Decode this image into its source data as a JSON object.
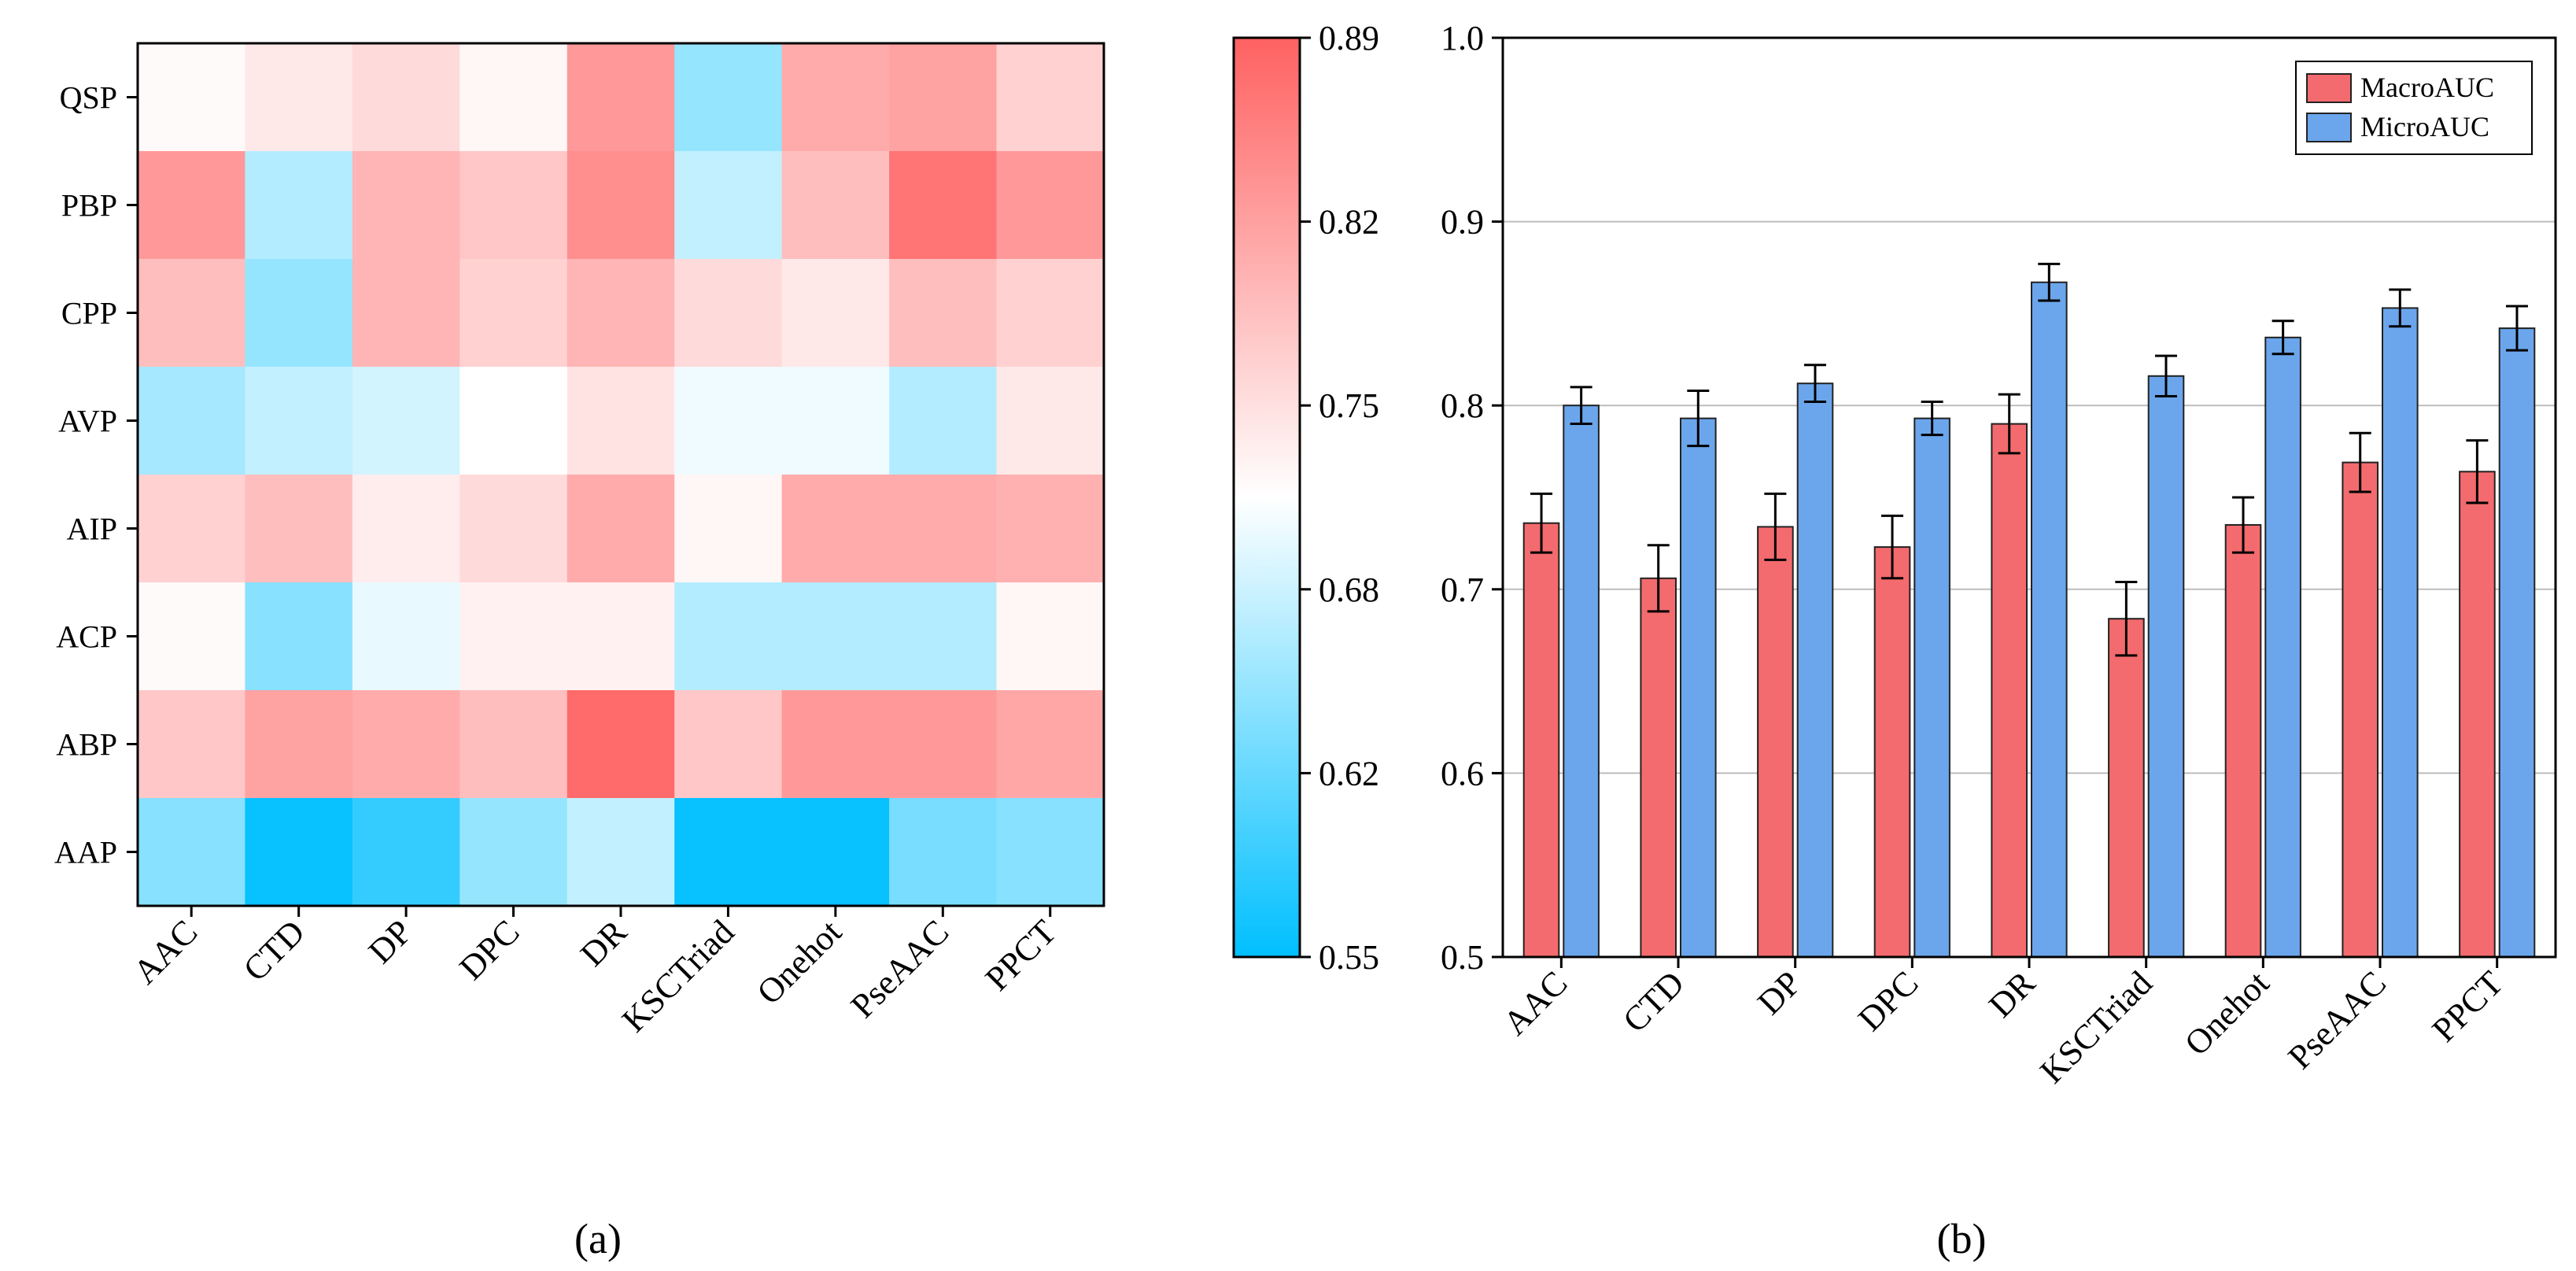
{
  "panel_labels": [
    "(a)",
    "(b)"
  ],
  "chart_data": [
    {
      "type": "heatmap",
      "x_categories": [
        "AAC",
        "CTD",
        "DP",
        "DPC",
        "DR",
        "KSCTriad",
        "Onehot",
        "PseAAC",
        "PPCT"
      ],
      "y_categories": [
        "QSP",
        "PBP",
        "CPP",
        "AVP",
        "AIP",
        "ACP",
        "ABP",
        "AAP"
      ],
      "values": [
        [
          0.725,
          0.745,
          0.76,
          0.73,
          0.83,
          0.65,
          0.81,
          0.82,
          0.77
        ],
        [
          0.83,
          0.67,
          0.8,
          0.78,
          0.84,
          0.68,
          0.79,
          0.87,
          0.83
        ],
        [
          0.79,
          0.65,
          0.8,
          0.77,
          0.8,
          0.76,
          0.745,
          0.79,
          0.77
        ],
        [
          0.66,
          0.68,
          0.69,
          0.72,
          0.75,
          0.71,
          0.71,
          0.67,
          0.745
        ],
        [
          0.77,
          0.79,
          0.74,
          0.76,
          0.81,
          0.73,
          0.81,
          0.81,
          0.805
        ],
        [
          0.725,
          0.64,
          0.705,
          0.735,
          0.735,
          0.67,
          0.67,
          0.67,
          0.73
        ],
        [
          0.78,
          0.82,
          0.81,
          0.79,
          0.88,
          0.78,
          0.83,
          0.83,
          0.815
        ],
        [
          0.64,
          0.555,
          0.585,
          0.65,
          0.68,
          0.555,
          0.555,
          0.63,
          0.64
        ]
      ],
      "colorbar": {
        "min": 0.55,
        "max": 0.89,
        "ticks": [
          "0.89",
          "0.82",
          "0.75",
          "0.68",
          "0.62",
          "0.55"
        ],
        "low_color": "#00bfff",
        "mid_color": "#ffffff",
        "high_color": "#ff6161"
      }
    },
    {
      "type": "bar",
      "categories": [
        "AAC",
        "CTD",
        "DP",
        "DPC",
        "DR",
        "KSCTriad",
        "Onehot",
        "PseAAC",
        "PPCT"
      ],
      "series": [
        {
          "name": "MacroAUC",
          "color": "#f36b6e",
          "values": [
            0.736,
            0.706,
            0.734,
            0.723,
            0.79,
            0.684,
            0.735,
            0.769,
            0.764
          ],
          "errors": [
            0.016,
            0.018,
            0.018,
            0.017,
            0.016,
            0.02,
            0.015,
            0.016,
            0.017
          ]
        },
        {
          "name": "MicroAUC",
          "color": "#6ba6ec",
          "values": [
            0.8,
            0.793,
            0.812,
            0.793,
            0.867,
            0.816,
            0.837,
            0.853,
            0.842
          ],
          "errors": [
            0.01,
            0.015,
            0.01,
            0.009,
            0.01,
            0.011,
            0.009,
            0.01,
            0.012
          ]
        }
      ],
      "ylim": [
        0.5,
        1.0
      ],
      "y_ticks": [
        "0.5",
        "0.6",
        "0.7",
        "0.8",
        "0.9",
        "1.0"
      ],
      "grid": true,
      "legend_position": "top-right"
    }
  ]
}
